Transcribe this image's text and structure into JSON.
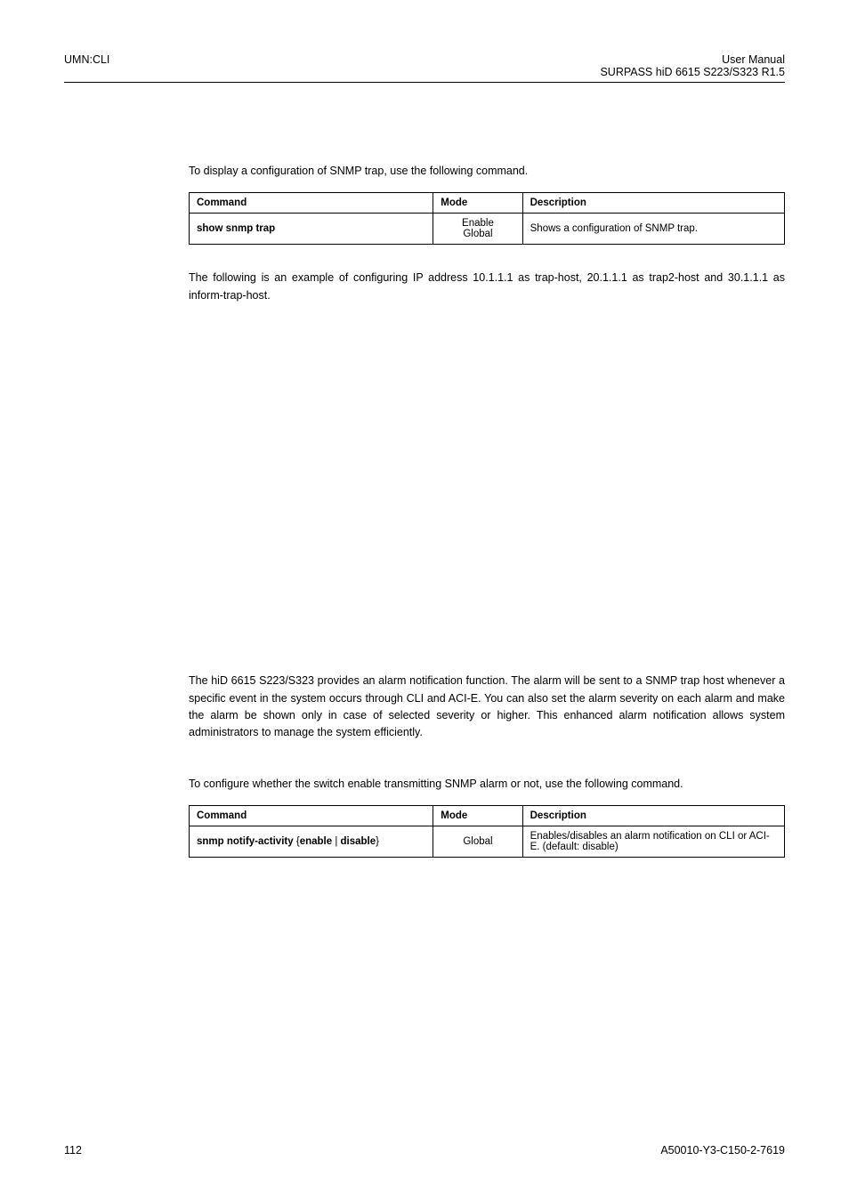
{
  "header": {
    "left": "UMN:CLI",
    "right_line1": "User Manual",
    "right_line2": "SURPASS hiD 6615 S223/S323 R1.5"
  },
  "sections": {
    "intro_trap_display": "To display a configuration of SNMP trap, use the following command.",
    "trap_table": {
      "headers": {
        "command": "Command",
        "mode": "Mode",
        "description": "Description"
      },
      "row": {
        "command": "show snmp trap",
        "mode_line1": "Enable",
        "mode_line2": "Global",
        "description": "Shows a configuration of SNMP trap."
      }
    },
    "example_intro": "The following is an example of configuring IP address 10.1.1.1 as trap-host, 20.1.1.1 as trap2-host and 30.1.1.1 as inform-trap-host.",
    "alarm_intro": "The hiD 6615 S223/S323 provides an alarm notification function. The alarm will be sent to a SNMP trap host whenever a specific event in the system occurs through CLI and ACI-E. You can also set the alarm severity on each alarm and make the alarm be shown only in case of selected severity or higher. This enhanced alarm notification allows system administrators to manage the system efficiently.",
    "alarm_cmd_intro": "To configure whether the switch enable transmitting SNMP alarm or not, use the following command.",
    "alarm_table": {
      "headers": {
        "command": "Command",
        "mode": "Mode",
        "description": "Description"
      },
      "row": {
        "command_bold": "snmp notify-activity",
        "command_rest_open": " {",
        "command_opt1": "enable",
        "command_pipe": " | ",
        "command_opt2": "disable",
        "command_rest_close": "}",
        "mode": "Global",
        "description": "Enables/disables an alarm notification on CLI or ACI-E. (default: disable)"
      }
    }
  },
  "footer": {
    "page": "112",
    "docid": "A50010-Y3-C150-2-7619"
  }
}
